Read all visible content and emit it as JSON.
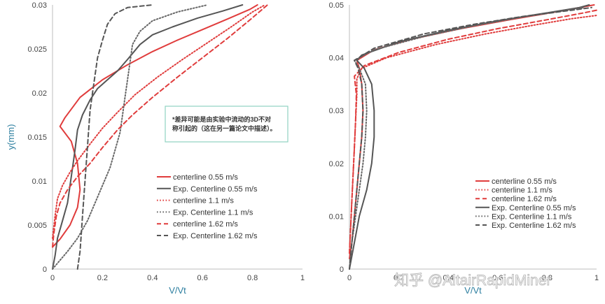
{
  "chart_data": [
    {
      "type": "line",
      "title": "",
      "xlabel": "V/Vt",
      "ylabel": "y(mm)",
      "xlim": [
        0,
        1
      ],
      "ylim": [
        0,
        0.03
      ],
      "x_ticks": [
        "0",
        "0.2",
        "0.4",
        "0.6",
        "0.8",
        "1"
      ],
      "y_ticks": [
        "0",
        "0.005",
        "0.01",
        "0.015",
        "0.02",
        "0.025",
        "0.03"
      ],
      "grid": false,
      "legend_position": "right-middle",
      "annotation": "*差异可能是由实验中流动的3D不对称引起的（这在另一篇论文中描述）。",
      "series": [
        {
          "name": "centerline 0.55 m/s",
          "color": "#e03c3c",
          "style": "solid",
          "points": [
            [
              0,
              0.0025
            ],
            [
              0.03,
              0.0034
            ],
            [
              0.07,
              0.005
            ],
            [
              0.1,
              0.007
            ],
            [
              0.11,
              0.009
            ],
            [
              0.1,
              0.012
            ],
            [
              0.075,
              0.0145
            ],
            [
              0.03,
              0.0162
            ],
            [
              0.05,
              0.0172
            ],
            [
              0.11,
              0.0195
            ],
            [
              0.2,
              0.0215
            ],
            [
              0.3,
              0.0232
            ],
            [
              0.4,
              0.0247
            ],
            [
              0.5,
              0.026
            ],
            [
              0.6,
              0.0272
            ],
            [
              0.7,
              0.0284
            ],
            [
              0.79,
              0.0295
            ],
            [
              0.82,
              0.03
            ]
          ]
        },
        {
          "name": "Exp. Centerline 0.55 m/s",
          "color": "#555555",
          "style": "solid",
          "points": [
            [
              0,
              0
            ],
            [
              0.01,
              0.0015
            ],
            [
              0.02,
              0.0035
            ],
            [
              0.04,
              0.0055
            ],
            [
              0.06,
              0.0075
            ],
            [
              0.07,
              0.0095
            ],
            [
              0.08,
              0.0115
            ],
            [
              0.09,
              0.0135
            ],
            [
              0.1,
              0.0158
            ],
            [
              0.12,
              0.0175
            ],
            [
              0.15,
              0.0192
            ],
            [
              0.18,
              0.0205
            ],
            [
              0.22,
              0.0215
            ],
            [
              0.26,
              0.0225
            ],
            [
              0.3,
              0.0238
            ],
            [
              0.35,
              0.0255
            ],
            [
              0.4,
              0.0266
            ],
            [
              0.48,
              0.0275
            ],
            [
              0.58,
              0.0285
            ],
            [
              0.68,
              0.0293
            ],
            [
              0.76,
              0.03
            ]
          ]
        },
        {
          "name": "centerline 1.1 m/s",
          "color": "#e03c3c",
          "style": "dotted",
          "points": [
            [
              0,
              0.0035
            ],
            [
              0.01,
              0.006
            ],
            [
              0.02,
              0.008
            ],
            [
              0.04,
              0.0095
            ],
            [
              0.07,
              0.011
            ],
            [
              0.1,
              0.0123
            ],
            [
              0.15,
              0.0142
            ],
            [
              0.2,
              0.016
            ],
            [
              0.26,
              0.0178
            ],
            [
              0.33,
              0.0198
            ],
            [
              0.42,
              0.0218
            ],
            [
              0.52,
              0.0238
            ],
            [
              0.62,
              0.0257
            ],
            [
              0.72,
              0.0276
            ],
            [
              0.8,
              0.0292
            ],
            [
              0.85,
              0.03
            ]
          ]
        },
        {
          "name": "Exp. Centerline 1.1 m/s",
          "color": "#666666",
          "style": "dotted",
          "points": [
            [
              0,
              0
            ],
            [
              0.03,
              0.001
            ],
            [
              0.06,
              0.002
            ],
            [
              0.1,
              0.0035
            ],
            [
              0.14,
              0.0055
            ],
            [
              0.17,
              0.0075
            ],
            [
              0.2,
              0.0095
            ],
            [
              0.23,
              0.0115
            ],
            [
              0.25,
              0.0135
            ],
            [
              0.27,
              0.0155
            ],
            [
              0.28,
              0.0175
            ],
            [
              0.29,
              0.0195
            ],
            [
              0.3,
              0.0215
            ],
            [
              0.31,
              0.0235
            ],
            [
              0.32,
              0.0255
            ],
            [
              0.35,
              0.027
            ],
            [
              0.4,
              0.0282
            ],
            [
              0.5,
              0.0292
            ],
            [
              0.62,
              0.03
            ]
          ]
        },
        {
          "name": "centerline 1.62 m/s",
          "color": "#e03c3c",
          "style": "dashed",
          "points": [
            [
              0,
              0.0025
            ],
            [
              0.005,
              0.004
            ],
            [
              0.015,
              0.006
            ],
            [
              0.03,
              0.0075
            ],
            [
              0.06,
              0.009
            ],
            [
              0.1,
              0.0105
            ],
            [
              0.15,
              0.012
            ],
            [
              0.2,
              0.0138
            ],
            [
              0.26,
              0.0158
            ],
            [
              0.32,
              0.0175
            ],
            [
              0.4,
              0.0195
            ],
            [
              0.5,
              0.0218
            ],
            [
              0.6,
              0.024
            ],
            [
              0.7,
              0.0262
            ],
            [
              0.79,
              0.0283
            ],
            [
              0.86,
              0.03
            ]
          ]
        },
        {
          "name": "Exp. Centerline 1.62 m/s",
          "color": "#555555",
          "style": "dashed",
          "points": [
            [
              0.1,
              0
            ],
            [
              0.11,
              0.002
            ],
            [
              0.115,
              0.004
            ],
            [
              0.12,
              0.006
            ],
            [
              0.125,
              0.008
            ],
            [
              0.13,
              0.01
            ],
            [
              0.135,
              0.012
            ],
            [
              0.14,
              0.014
            ],
            [
              0.145,
              0.016
            ],
            [
              0.15,
              0.018
            ],
            [
              0.16,
              0.02
            ],
            [
              0.17,
              0.022
            ],
            [
              0.18,
              0.024
            ],
            [
              0.2,
              0.026
            ],
            [
              0.22,
              0.0278
            ],
            [
              0.25,
              0.029
            ],
            [
              0.3,
              0.0297
            ],
            [
              0.4,
              0.03
            ]
          ]
        }
      ]
    },
    {
      "type": "line",
      "title": "",
      "xlabel": "V/Vt",
      "ylabel": "",
      "xlim": [
        0,
        1
      ],
      "ylim": [
        0,
        0.05
      ],
      "x_ticks": [
        "0",
        "0.2",
        "0.4",
        "0.6",
        "0.8",
        "1"
      ],
      "y_ticks": [
        "0",
        "0.01",
        "0.02",
        "0.03",
        "0.04",
        "0.05"
      ],
      "grid": false,
      "legend_position": "bottom-right",
      "series": [
        {
          "name": "centerline 0.55 m/s",
          "color": "#e03c3c",
          "style": "solid",
          "points": [
            [
              0,
              0.002
            ],
            [
              0.01,
              0.005
            ],
            [
              0.02,
              0.01
            ],
            [
              0.03,
              0.015
            ],
            [
              0.04,
              0.02
            ],
            [
              0.05,
              0.025
            ],
            [
              0.055,
              0.03
            ],
            [
              0.05,
              0.035
            ],
            [
              0.04,
              0.038
            ],
            [
              0.03,
              0.0395
            ],
            [
              0.1,
              0.0415
            ],
            [
              0.25,
              0.0435
            ],
            [
              0.45,
              0.0455
            ],
            [
              0.65,
              0.0472
            ],
            [
              0.85,
              0.0488
            ],
            [
              0.99,
              0.05
            ]
          ]
        },
        {
          "name": "centerline 1.1 m/s",
          "color": "#e03c3c",
          "style": "dotted",
          "points": [
            [
              0,
              0.003
            ],
            [
              0.005,
              0.008
            ],
            [
              0.01,
              0.013
            ],
            [
              0.015,
              0.018
            ],
            [
              0.02,
              0.023
            ],
            [
              0.025,
              0.028
            ],
            [
              0.03,
              0.033
            ],
            [
              0.03,
              0.036
            ],
            [
              0.05,
              0.038
            ],
            [
              0.15,
              0.04
            ],
            [
              0.35,
              0.0425
            ],
            [
              0.55,
              0.0445
            ],
            [
              0.75,
              0.0462
            ],
            [
              0.9,
              0.0474
            ],
            [
              1,
              0.048
            ]
          ]
        },
        {
          "name": "centerline 1.62 m/s",
          "color": "#e03c3c",
          "style": "dashed",
          "points": [
            [
              0,
              0.003
            ],
            [
              0.005,
              0.008
            ],
            [
              0.01,
              0.013
            ],
            [
              0.015,
              0.018
            ],
            [
              0.02,
              0.023
            ],
            [
              0.025,
              0.028
            ],
            [
              0.028,
              0.033
            ],
            [
              0.02,
              0.0365
            ],
            [
              0.06,
              0.0385
            ],
            [
              0.2,
              0.041
            ],
            [
              0.4,
              0.0435
            ],
            [
              0.6,
              0.0455
            ],
            [
              0.8,
              0.0472
            ],
            [
              0.95,
              0.0485
            ],
            [
              1,
              0.049
            ]
          ]
        },
        {
          "name": "Exp. Centerline 0.55 m/s",
          "color": "#555555",
          "style": "solid",
          "points": [
            [
              0,
              0
            ],
            [
              0.02,
              0.005
            ],
            [
              0.04,
              0.01
            ],
            [
              0.07,
              0.015
            ],
            [
              0.09,
              0.02
            ],
            [
              0.1,
              0.025
            ],
            [
              0.1,
              0.03
            ],
            [
              0.09,
              0.035
            ],
            [
              0.06,
              0.038
            ],
            [
              0.03,
              0.0395
            ],
            [
              0.05,
              0.0405
            ],
            [
              0.2,
              0.043
            ],
            [
              0.4,
              0.0452
            ],
            [
              0.6,
              0.047
            ],
            [
              0.8,
              0.0485
            ],
            [
              0.93,
              0.0495
            ],
            [
              0.97,
              0.05
            ]
          ]
        },
        {
          "name": "Exp. Centerline 1.1 m/s",
          "color": "#666666",
          "style": "dotted",
          "points": [
            [
              0,
              0
            ],
            [
              0.01,
              0.005
            ],
            [
              0.025,
              0.01
            ],
            [
              0.04,
              0.015
            ],
            [
              0.055,
              0.02
            ],
            [
              0.065,
              0.025
            ],
            [
              0.07,
              0.03
            ],
            [
              0.065,
              0.035
            ],
            [
              0.04,
              0.038
            ],
            [
              0.02,
              0.0395
            ],
            [
              0.1,
              0.0415
            ],
            [
              0.3,
              0.044
            ],
            [
              0.5,
              0.046
            ],
            [
              0.7,
              0.0477
            ],
            [
              0.88,
              0.049
            ],
            [
              0.95,
              0.0495
            ]
          ]
        },
        {
          "name": "Exp. Centerline 1.62 m/s",
          "color": "#555555",
          "style": "dashed",
          "points": [
            [
              0,
              0
            ],
            [
              0.01,
              0.005
            ],
            [
              0.02,
              0.01
            ],
            [
              0.03,
              0.015
            ],
            [
              0.04,
              0.02
            ],
            [
              0.05,
              0.025
            ],
            [
              0.055,
              0.03
            ],
            [
              0.05,
              0.035
            ],
            [
              0.035,
              0.038
            ],
            [
              0.02,
              0.0395
            ],
            [
              0.1,
              0.0418
            ],
            [
              0.3,
              0.0445
            ],
            [
              0.5,
              0.0463
            ],
            [
              0.7,
              0.0478
            ],
            [
              0.9,
              0.049
            ],
            [
              0.98,
              0.0495
            ]
          ]
        }
      ]
    }
  ],
  "watermark": "知乎 @AltairRapidMiner"
}
